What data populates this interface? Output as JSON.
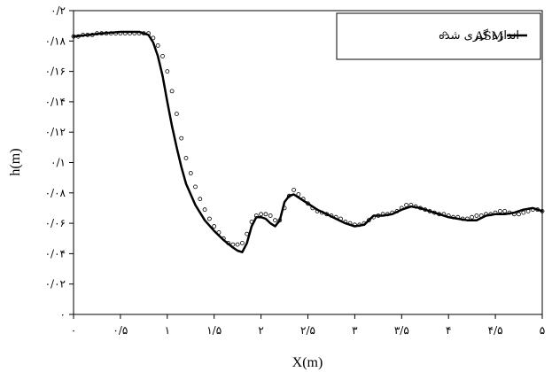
{
  "chart_data": {
    "type": "line",
    "xlabel": "X(m)",
    "ylabel": "h(m)",
    "xlim": [
      0,
      5
    ],
    "ylim": [
      0,
      0.2
    ],
    "x_ticks": [
      {
        "v": 0,
        "label": "۰"
      },
      {
        "v": 0.5,
        "label": "۰/۵"
      },
      {
        "v": 1,
        "label": "۱"
      },
      {
        "v": 1.5,
        "label": "۱/۵"
      },
      {
        "v": 2,
        "label": "۲"
      },
      {
        "v": 2.5,
        "label": "۲/۵"
      },
      {
        "v": 3,
        "label": "۳"
      },
      {
        "v": 3.5,
        "label": "۳/۵"
      },
      {
        "v": 4,
        "label": "۴"
      },
      {
        "v": 4.5,
        "label": "۴/۵"
      },
      {
        "v": 5,
        "label": "۵"
      }
    ],
    "y_ticks": [
      {
        "v": 0,
        "label": "۰"
      },
      {
        "v": 0.02,
        "label": "۰/۰۲"
      },
      {
        "v": 0.04,
        "label": "۰/۰۴"
      },
      {
        "v": 0.06,
        "label": "۰/۰۶"
      },
      {
        "v": 0.08,
        "label": "۰/۰۸"
      },
      {
        "v": 0.1,
        "label": "۰/۱"
      },
      {
        "v": 0.12,
        "label": "۰/۱۲"
      },
      {
        "v": 0.14,
        "label": "۰/۱۴"
      },
      {
        "v": 0.16,
        "label": "۰/۱۶"
      },
      {
        "v": 0.18,
        "label": "۰/۱۸"
      },
      {
        "v": 0.2,
        "label": "۰/۲"
      }
    ],
    "grid": false,
    "legend_position": "top-right",
    "series": [
      {
        "name": "ASM",
        "style": "line",
        "color": "#000000",
        "x": [
          0,
          0.3,
          0.5,
          0.7,
          0.8,
          0.85,
          0.9,
          0.95,
          1.0,
          1.05,
          1.1,
          1.15,
          1.2,
          1.3,
          1.4,
          1.5,
          1.6,
          1.7,
          1.75,
          1.8,
          1.85,
          1.9,
          1.95,
          2.0,
          2.05,
          2.1,
          2.15,
          2.2,
          2.25,
          2.3,
          2.35,
          2.4,
          2.5,
          2.6,
          2.7,
          2.8,
          2.9,
          3.0,
          3.1,
          3.15,
          3.2,
          3.3,
          3.4,
          3.5,
          3.6,
          3.7,
          3.8,
          3.9,
          4.0,
          4.1,
          4.2,
          4.3,
          4.4,
          4.5,
          4.6,
          4.7,
          4.8,
          4.9,
          5.0
        ],
        "y": [
          0.183,
          0.185,
          0.186,
          0.186,
          0.184,
          0.179,
          0.17,
          0.157,
          0.14,
          0.124,
          0.11,
          0.097,
          0.086,
          0.072,
          0.062,
          0.055,
          0.049,
          0.044,
          0.042,
          0.041,
          0.047,
          0.058,
          0.064,
          0.064,
          0.063,
          0.06,
          0.058,
          0.062,
          0.074,
          0.078,
          0.079,
          0.077,
          0.073,
          0.069,
          0.066,
          0.063,
          0.06,
          0.058,
          0.059,
          0.062,
          0.065,
          0.065,
          0.066,
          0.069,
          0.071,
          0.07,
          0.068,
          0.066,
          0.064,
          0.063,
          0.062,
          0.062,
          0.065,
          0.066,
          0.066,
          0.067,
          0.069,
          0.07,
          0.068
        ]
      },
      {
        "name": "اندازه گیری شده",
        "style": "markers",
        "color": "#000000",
        "x": [
          0,
          0.05,
          0.1,
          0.15,
          0.2,
          0.25,
          0.3,
          0.35,
          0.4,
          0.45,
          0.5,
          0.55,
          0.6,
          0.65,
          0.7,
          0.75,
          0.8,
          0.85,
          0.9,
          0.95,
          1.0,
          1.05,
          1.1,
          1.15,
          1.2,
          1.25,
          1.3,
          1.35,
          1.4,
          1.45,
          1.5,
          1.55,
          1.6,
          1.65,
          1.7,
          1.75,
          1.8,
          1.85,
          1.9,
          1.95,
          2.0,
          2.05,
          2.1,
          2.15,
          2.2,
          2.25,
          2.3,
          2.35,
          2.4,
          2.45,
          2.5,
          2.55,
          2.6,
          2.65,
          2.7,
          2.75,
          2.8,
          2.85,
          2.9,
          2.95,
          3.0,
          3.05,
          3.1,
          3.15,
          3.2,
          3.25,
          3.3,
          3.35,
          3.4,
          3.45,
          3.5,
          3.55,
          3.6,
          3.65,
          3.7,
          3.75,
          3.8,
          3.85,
          3.9,
          3.95,
          4.0,
          4.05,
          4.1,
          4.15,
          4.2,
          4.25,
          4.3,
          4.35,
          4.4,
          4.45,
          4.5,
          4.55,
          4.6,
          4.65,
          4.7,
          4.75,
          4.8,
          4.85,
          4.9,
          4.95,
          5.0
        ],
        "y": [
          0.183,
          0.183,
          0.184,
          0.184,
          0.184,
          0.185,
          0.185,
          0.185,
          0.185,
          0.185,
          0.185,
          0.185,
          0.185,
          0.185,
          0.185,
          0.185,
          0.185,
          0.182,
          0.177,
          0.17,
          0.16,
          0.147,
          0.132,
          0.116,
          0.103,
          0.093,
          0.084,
          0.076,
          0.069,
          0.063,
          0.058,
          0.054,
          0.05,
          0.047,
          0.046,
          0.046,
          0.047,
          0.053,
          0.061,
          0.065,
          0.066,
          0.066,
          0.065,
          0.062,
          0.062,
          0.07,
          0.078,
          0.082,
          0.079,
          0.076,
          0.073,
          0.07,
          0.068,
          0.067,
          0.066,
          0.065,
          0.064,
          0.063,
          0.061,
          0.06,
          0.059,
          0.059,
          0.06,
          0.062,
          0.064,
          0.065,
          0.066,
          0.066,
          0.067,
          0.068,
          0.07,
          0.072,
          0.072,
          0.071,
          0.07,
          0.069,
          0.068,
          0.067,
          0.066,
          0.066,
          0.065,
          0.064,
          0.064,
          0.063,
          0.063,
          0.064,
          0.065,
          0.065,
          0.066,
          0.066,
          0.067,
          0.068,
          0.068,
          0.067,
          0.066,
          0.066,
          0.067,
          0.068,
          0.069,
          0.069,
          0.068
        ]
      }
    ]
  }
}
